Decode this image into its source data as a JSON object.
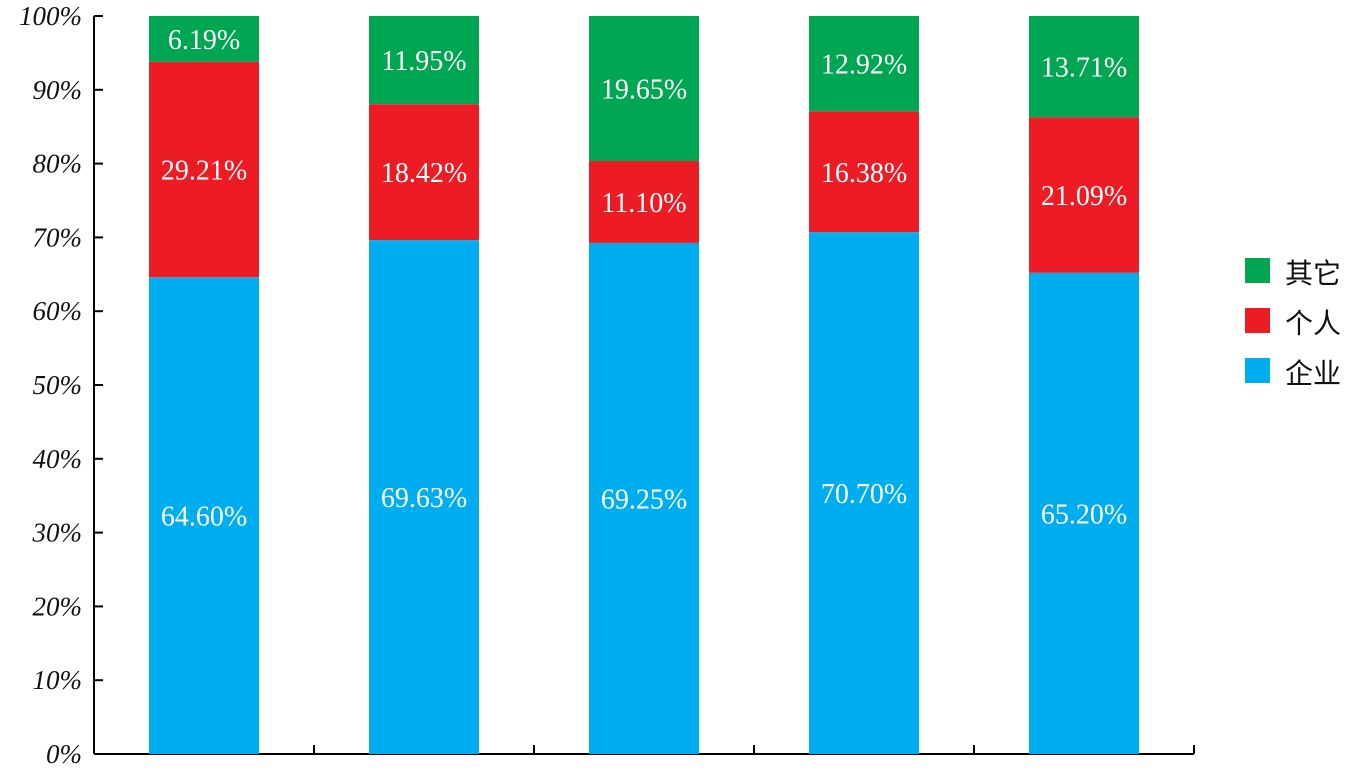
{
  "chart_data": {
    "type": "bar",
    "stacked": true,
    "categories": [
      "",
      "",
      "",
      "",
      ""
    ],
    "series": [
      {
        "name": "企业",
        "color": "#00aeef",
        "values": [
          64.6,
          69.63,
          69.25,
          70.7,
          65.2
        ],
        "labels": [
          "64.60%",
          "69.63%",
          "69.25%",
          "70.70%",
          "65.20%"
        ]
      },
      {
        "name": "个人",
        "color": "#ed1c24",
        "values": [
          29.21,
          18.42,
          11.1,
          16.38,
          21.09
        ],
        "labels": [
          "29.21%",
          "18.42%",
          "11.10%",
          "16.38%",
          "21.09%"
        ]
      },
      {
        "name": "其它",
        "color": "#00a651",
        "values": [
          6.19,
          11.95,
          19.65,
          12.92,
          13.71
        ],
        "labels": [
          "6.19%",
          "11.95%",
          "19.65%",
          "12.92%",
          "13.71%"
        ]
      }
    ],
    "ylim": [
      0,
      100
    ],
    "yticks": [
      "0%",
      "10%",
      "20%",
      "30%",
      "40%",
      "50%",
      "60%",
      "70%",
      "80%",
      "90%",
      "100%"
    ],
    "grid": false,
    "legend": {
      "position": "right",
      "order": [
        "其它",
        "个人",
        "企业"
      ]
    },
    "title": "",
    "xlabel": "",
    "ylabel": ""
  }
}
